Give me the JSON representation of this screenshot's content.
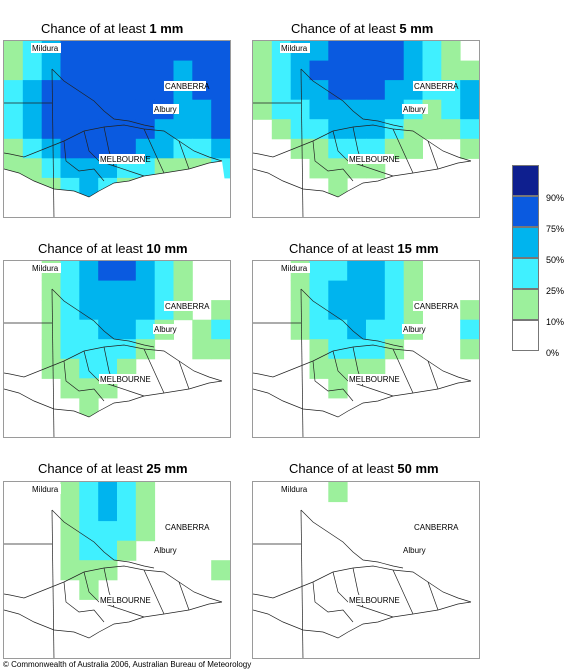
{
  "panels": [
    {
      "prefix": "Chance of at least ",
      "amount": "1 mm"
    },
    {
      "prefix": "Chance of at least ",
      "amount": "5 mm"
    },
    {
      "prefix": "Chance of at least ",
      "amount": "10 mm"
    },
    {
      "prefix": "Chance of at least ",
      "amount": "15 mm"
    },
    {
      "prefix": "Chance of at least ",
      "amount": "25 mm"
    },
    {
      "prefix": "Chance of at least ",
      "amount": "50 mm"
    }
  ],
  "places": {
    "mildura": "Mildura",
    "canberra": "CANBERRA",
    "albury": "Albury",
    "melbourne": "MELBOURNE"
  },
  "legend": {
    "labels": [
      "90%",
      "75%",
      "50%",
      "25%",
      "10%",
      "0%"
    ],
    "colors": [
      "#0e1f8f",
      "#0a5ae0",
      "#00b4ee",
      "#40f0ff",
      "#9cf09c",
      "#ffffff"
    ]
  },
  "footer": "© Commonwealth of Australia 2006, Australian Bureau of Meteorology"
}
